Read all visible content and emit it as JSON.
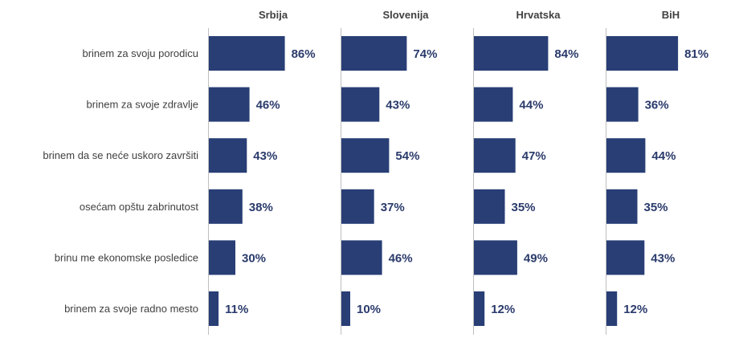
{
  "chart_data": {
    "type": "bar",
    "orientation": "horizontal",
    "categories": [
      "brinem za svoju porodicu",
      "brinem za svoje zdravlje",
      "brinem da se neće uskoro završiti",
      "osećam opštu zabrinutost",
      "brinu me ekonomske posledice",
      "brinem za svoje radno mesto"
    ],
    "series": [
      {
        "name": "Srbija",
        "values": [
          86,
          46,
          43,
          38,
          30,
          11
        ]
      },
      {
        "name": "Slovenija",
        "values": [
          74,
          43,
          54,
          37,
          46,
          10
        ]
      },
      {
        "name": "Hrvatska",
        "values": [
          84,
          44,
          47,
          35,
          49,
          12
        ]
      },
      {
        "name": "BiH",
        "values": [
          81,
          36,
          44,
          35,
          43,
          12
        ]
      }
    ],
    "value_suffix": "%",
    "xlim": [
      0,
      100
    ],
    "bar_color": "#283e75",
    "label_color": "#2a3a6b",
    "grid": false,
    "legend": "none"
  }
}
